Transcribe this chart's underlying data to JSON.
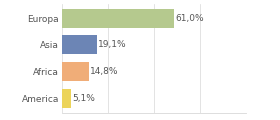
{
  "categories": [
    "Europa",
    "Asia",
    "Africa",
    "America"
  ],
  "values": [
    61.0,
    19.1,
    14.8,
    5.1
  ],
  "labels": [
    "61,0%",
    "19,1%",
    "14,8%",
    "5,1%"
  ],
  "bar_colors": [
    "#b5c98e",
    "#6c85b5",
    "#f0ad78",
    "#ecd45a"
  ],
  "background_color": "#ffffff",
  "xlim": [
    0,
    100
  ],
  "label_fontsize": 6.5,
  "tick_fontsize": 6.5,
  "grid_color": "#d8d8d8",
  "text_color": "#555555"
}
